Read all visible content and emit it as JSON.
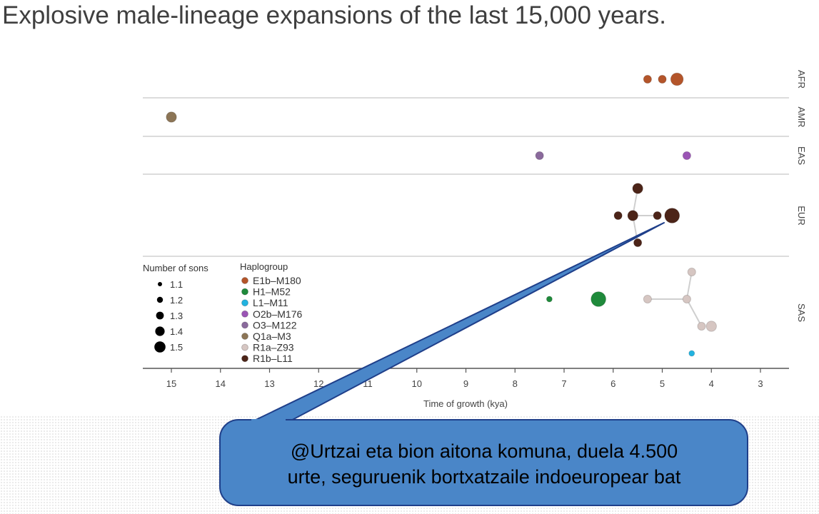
{
  "title": "Explosive male-lineage expansions of the last 15,000 years.",
  "callout": {
    "line1": "@Urtzai eta bion aitona komuna, duela 4.500",
    "line2": "urte, seguruenik bortxatzaile indoeuropear bat",
    "fill": "#4a86c8",
    "border": "#1f3f8a"
  },
  "chart_data": {
    "type": "scatter",
    "xlabel": "Time of growth (kya)",
    "xlim": [
      15.6,
      2.4
    ],
    "xticks": [
      15,
      14,
      13,
      12,
      11,
      10,
      9,
      8,
      7,
      6,
      5,
      4,
      3
    ],
    "rows": [
      "AFR",
      "AMR",
      "EAS",
      "EUR",
      "SAS"
    ],
    "legend": {
      "sons_title": "Number of sons",
      "sons": [
        "1.1",
        "1.2",
        "1.3",
        "1.4",
        "1.5"
      ],
      "haplo_title": "Haplogroup",
      "placement": "bottom-left"
    },
    "haplogroups": [
      {
        "name": "E1b–M180",
        "color": "#b4552a"
      },
      {
        "name": "H1–M52",
        "color": "#1f8a3b"
      },
      {
        "name": "L1–M11",
        "color": "#22b3e0"
      },
      {
        "name": "O2b–M176",
        "color": "#9b55b5"
      },
      {
        "name": "O3–M122",
        "color": "#8a6a9c"
      },
      {
        "name": "Q1a–M3",
        "color": "#8c7556"
      },
      {
        "name": "R1a–Z93",
        "color": "#d6c6c2"
      },
      {
        "name": "R1b–L11",
        "color": "#4c2418"
      }
    ],
    "points": [
      {
        "row": "AFR",
        "level": 0,
        "kya": 5.3,
        "sons": 1.2,
        "hg": 0
      },
      {
        "row": "AFR",
        "level": 0,
        "kya": 5.0,
        "sons": 1.2,
        "hg": 0
      },
      {
        "row": "AFR",
        "level": 0,
        "kya": 4.7,
        "sons": 1.4,
        "hg": 0
      },
      {
        "row": "AMR",
        "level": 0,
        "kya": 15.0,
        "sons": 1.3,
        "hg": 5
      },
      {
        "row": "EAS",
        "level": 0,
        "kya": 7.5,
        "sons": 1.2,
        "hg": 4
      },
      {
        "row": "EAS",
        "level": 0,
        "kya": 4.5,
        "sons": 1.2,
        "hg": 3
      },
      {
        "row": "EUR",
        "level": -1,
        "kya": 5.5,
        "sons": 1.3,
        "hg": 7
      },
      {
        "row": "EUR",
        "level": 0,
        "kya": 5.9,
        "sons": 1.2,
        "hg": 7
      },
      {
        "row": "EUR",
        "level": 0,
        "kya": 5.6,
        "sons": 1.3,
        "hg": 7
      },
      {
        "row": "EUR",
        "level": 0,
        "kya": 5.1,
        "sons": 1.2,
        "hg": 7
      },
      {
        "row": "EUR",
        "level": 0,
        "kya": 4.8,
        "sons": 1.5,
        "hg": 7
      },
      {
        "row": "EUR",
        "level": 1,
        "kya": 5.5,
        "sons": 1.2,
        "hg": 7
      },
      {
        "row": "SAS",
        "level": -1,
        "kya": 4.4,
        "sons": 1.2,
        "hg": 6
      },
      {
        "row": "SAS",
        "level": 0,
        "kya": 7.3,
        "sons": 1.1,
        "hg": 1
      },
      {
        "row": "SAS",
        "level": 0,
        "kya": 6.3,
        "sons": 1.5,
        "hg": 1
      },
      {
        "row": "SAS",
        "level": 0,
        "kya": 5.3,
        "sons": 1.2,
        "hg": 6
      },
      {
        "row": "SAS",
        "level": 0,
        "kya": 4.5,
        "sons": 1.2,
        "hg": 6
      },
      {
        "row": "SAS",
        "level": 1,
        "kya": 4.2,
        "sons": 1.2,
        "hg": 6
      },
      {
        "row": "SAS",
        "level": 1,
        "kya": 4.0,
        "sons": 1.3,
        "hg": 6
      },
      {
        "row": "SAS",
        "level": 2,
        "kya": 4.4,
        "sons": 1.1,
        "hg": 2
      }
    ],
    "edges": [
      [
        6,
        8
      ],
      [
        8,
        11
      ],
      [
        8,
        9
      ],
      [
        15,
        16
      ],
      [
        16,
        12
      ],
      [
        16,
        17
      ]
    ]
  }
}
